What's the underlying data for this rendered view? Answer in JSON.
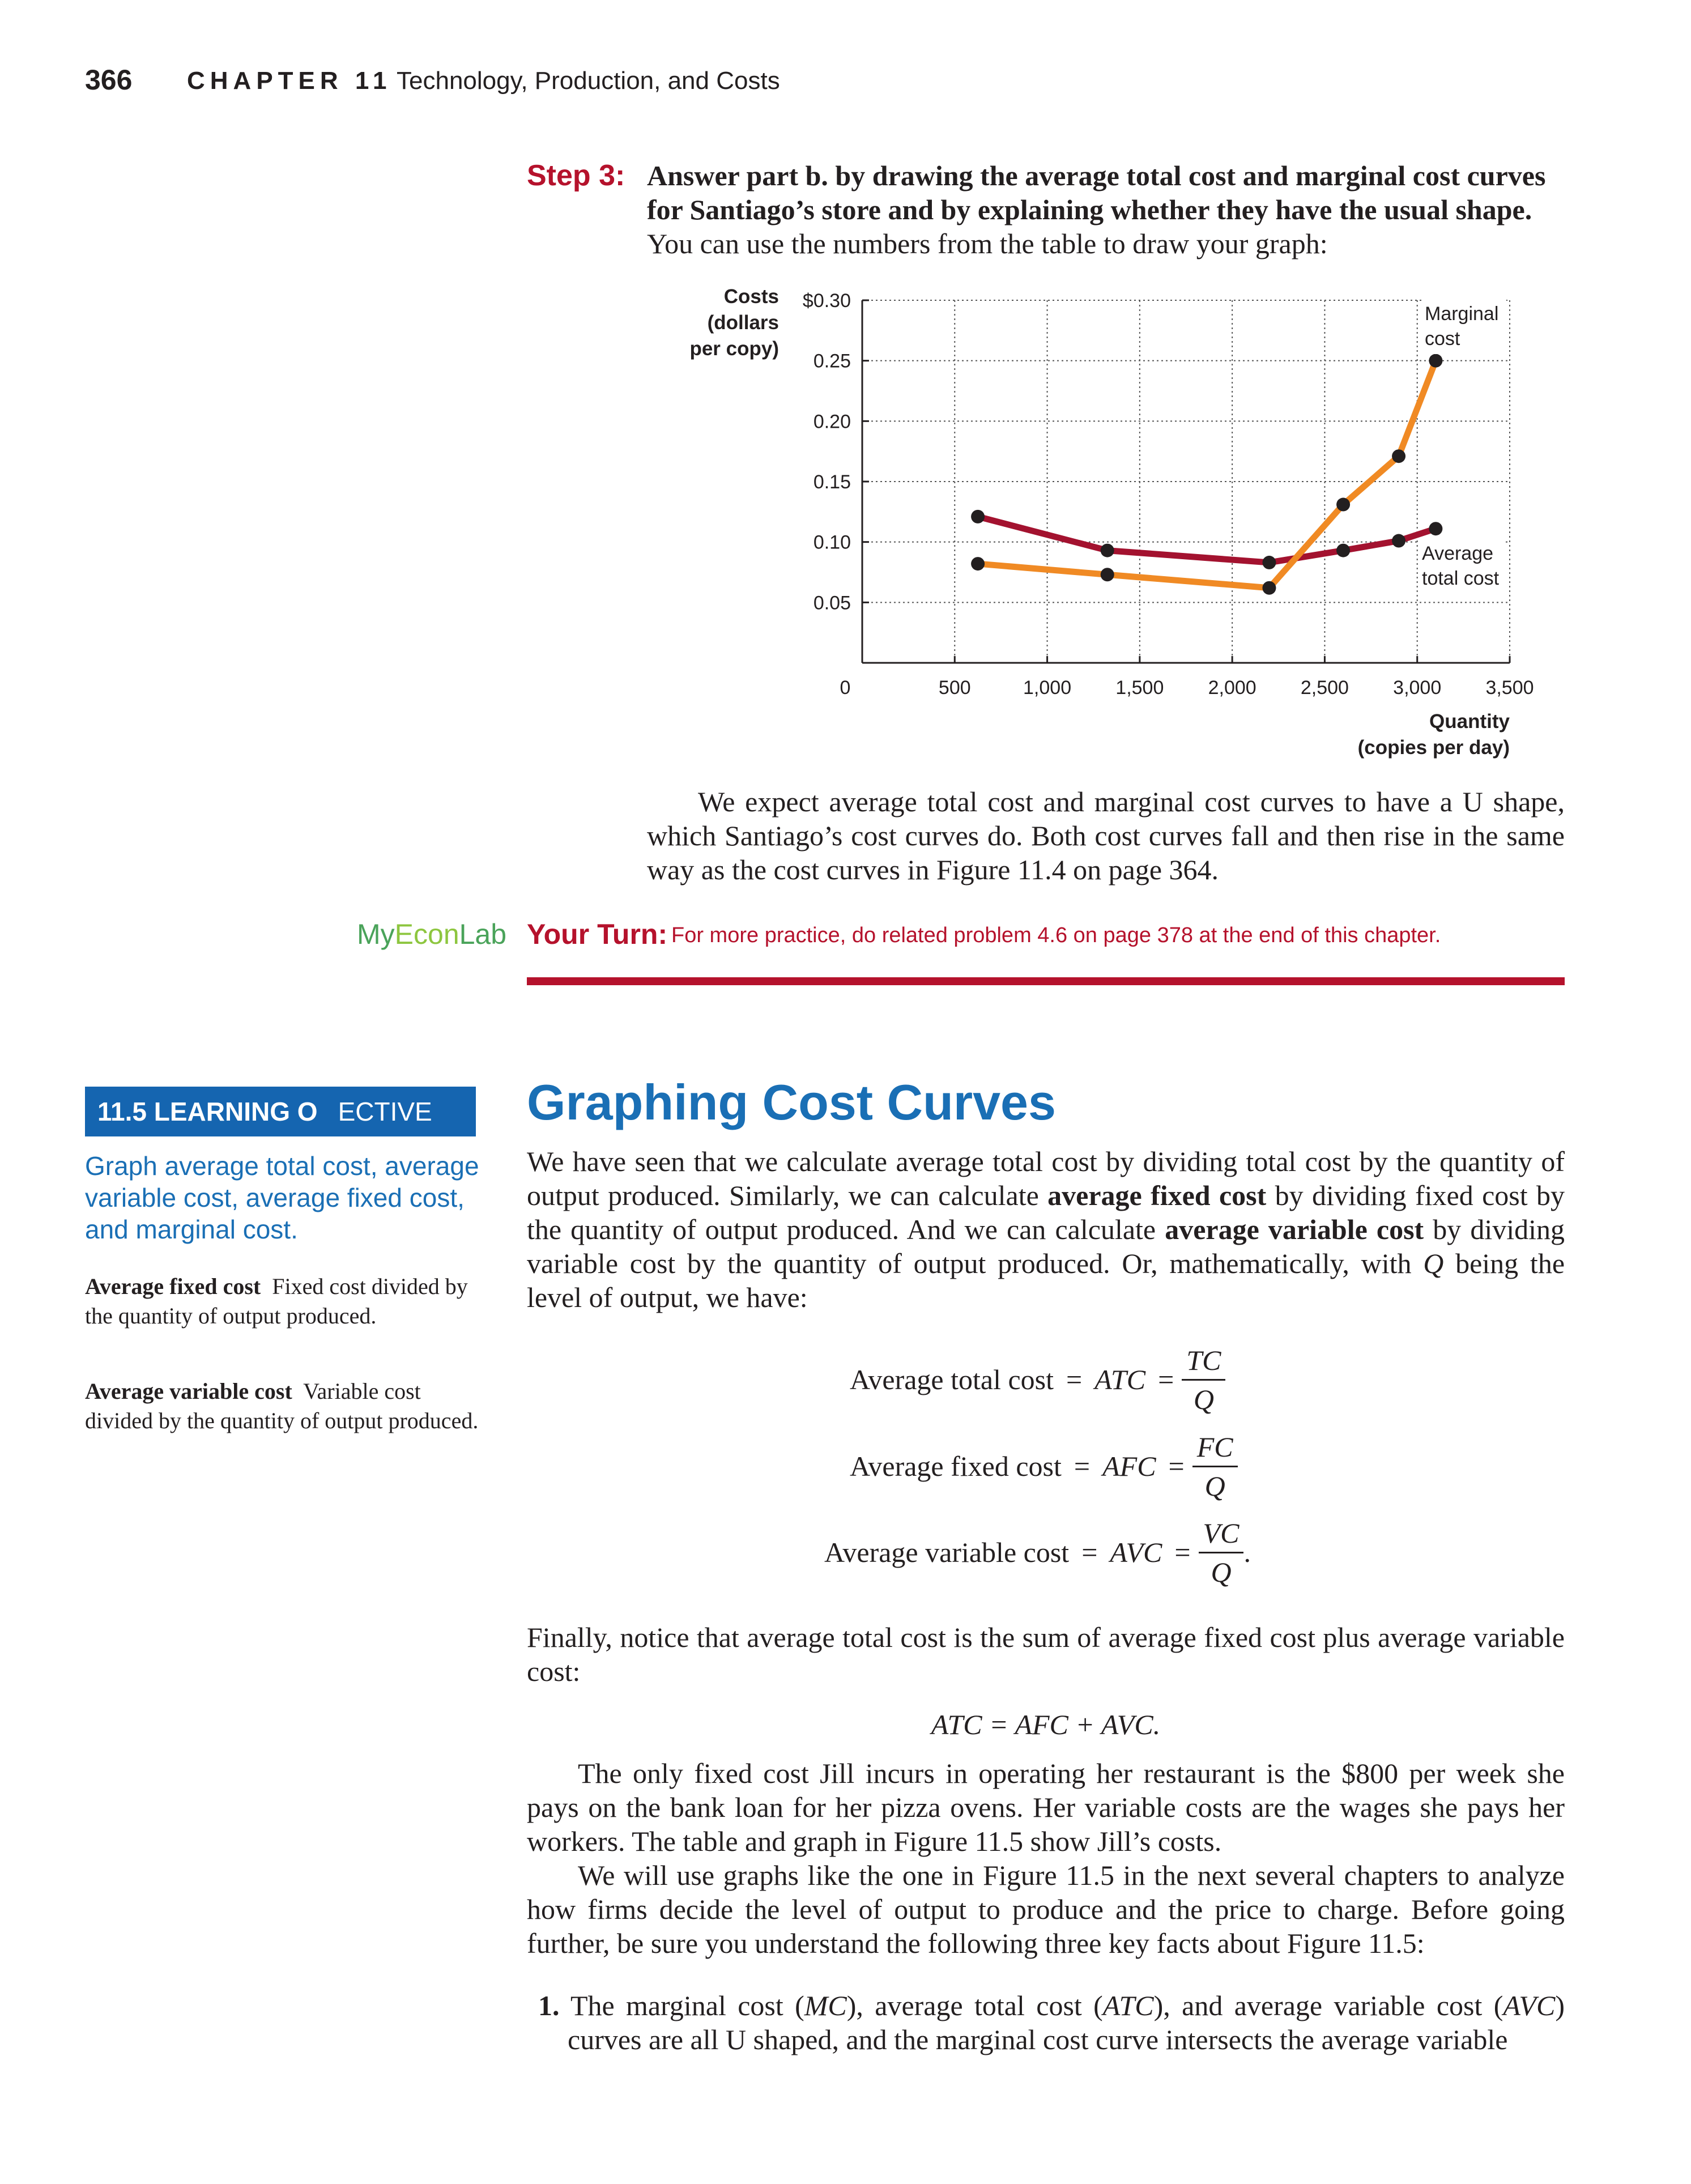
{
  "header": {
    "page_number": "366",
    "chapter_label": "CHAPTER 11",
    "chapter_title": "Technology, Production, and Costs"
  },
  "step": {
    "label": "Step 3:",
    "bold_text": "Answer part b. by drawing the average total cost and marginal cost curves for Santiago’s store and by explaining whether they have the usual shape.",
    "text": "You can use the numbers from the table to draw your graph:",
    "conclusion": "We expect average total cost and marginal cost curves to have a U shape, which Santiago’s cost curves do. Both cost curves fall and then rise in the same way as the cost curves in Figure 11.4 on page 364."
  },
  "chart_data": {
    "type": "line",
    "ylabel": [
      "Costs",
      "(dollars",
      "per copy)"
    ],
    "xlabel": [
      "Quantity",
      "(copies per day)"
    ],
    "xlim": [
      0,
      3500
    ],
    "ylim": [
      0,
      0.3
    ],
    "x_ticks": [
      0,
      500,
      1000,
      1500,
      2000,
      2500,
      3000,
      3500
    ],
    "x_tick_labels": [
      "0",
      "500",
      "1,000",
      "1,500",
      "2,000",
      "2,500",
      "3,000",
      "3,500"
    ],
    "y_ticks": [
      0.05,
      0.1,
      0.15,
      0.2,
      0.25,
      0.3
    ],
    "y_tick_labels": [
      "0.05",
      "0.10",
      "0.15",
      "0.20",
      "0.25",
      "$0.30"
    ],
    "grid": true,
    "series": [
      {
        "name": "Average total cost",
        "label_lines": [
          "Average",
          "total cost"
        ],
        "color": "#a3122f",
        "x": [
          625,
          1325,
          2200,
          2600,
          2900,
          3100
        ],
        "y": [
          0.121,
          0.093,
          0.083,
          0.093,
          0.101,
          0.111
        ]
      },
      {
        "name": "Marginal cost",
        "label_lines": [
          "Marginal",
          "cost"
        ],
        "color": "#f08a24",
        "x": [
          625,
          1325,
          2200,
          2600,
          2900,
          3100
        ],
        "y": [
          0.082,
          0.073,
          0.062,
          0.131,
          0.171,
          0.25
        ]
      }
    ]
  },
  "your_turn": {
    "brand_my": "My",
    "brand_econ": "Econ",
    "brand_lab": "Lab",
    "label": "Your Turn:",
    "text": "For more practice, do related problem 4.6 on page 378 at the end of this chapter."
  },
  "learning_objective": {
    "box_bold": "11.5 LEARNING O",
    "box_rest": "ECTIVE",
    "text": "Graph average total cost, average variable cost, average fixed cost, and marginal cost."
  },
  "definitions": [
    {
      "term": "Average fixed cost",
      "definition": "Fixed cost divided by the quantity of output produced."
    },
    {
      "term": "Average variable cost",
      "definition": "Variable cost divided by the quantity of output produced."
    }
  ],
  "section": {
    "title": "Graphing Cost Curves",
    "para1_a": "We have seen that we calculate average total cost by dividing total cost by the quantity of output produced. Similarly, we can calculate ",
    "para1_term1": "average fixed cost",
    "para1_b": " by dividing fixed cost by the quantity of output produced. And we can calculate ",
    "para1_term2": "average variable cost",
    "para1_c": " by dividing variable cost by the quantity of output produced. Or, mathematically, with ",
    "para1_q": "Q",
    "para1_d": " being the level of output, we have:",
    "para2": "Finally, notice that average total cost is the sum of average fixed cost plus average variable cost:",
    "para3": "The only fixed cost Jill incurs in operating her restaurant is the $800 per week she pays on the bank loan for her pizza ovens. Her variable costs are the wages she pays her workers. The table and graph in Figure 11.5 show Jill’s costs.",
    "para4": "We will use graphs like the one in Figure 11.5 in the next several chapters to analyze how firms decide the level of output to produce and the price to charge. Before going further, be sure you understand the following three key facts about Figure 11.5:",
    "list1_num": "1.",
    "list1_a": "The marginal cost (",
    "list1_mc": "MC",
    "list1_b": "), average total cost (",
    "list1_atc": "ATC",
    "list1_c": "), and average variable cost (",
    "list1_avc": "AVC",
    "list1_d": ") curves are all U shaped, and the marginal cost curve intersects the average variable"
  },
  "equations": [
    {
      "label": "Average total cost",
      "abbr": "ATC",
      "num": "TC",
      "den": "Q",
      "end": ""
    },
    {
      "label": "Average fixed cost",
      "abbr": "AFC",
      "num": "FC",
      "den": "Q",
      "end": ""
    },
    {
      "label": "Average variable cost",
      "abbr": "AVC",
      "num": "VC",
      "den": "Q",
      "end": "."
    }
  ],
  "sum_equation": "ATC = AFC + AVC."
}
